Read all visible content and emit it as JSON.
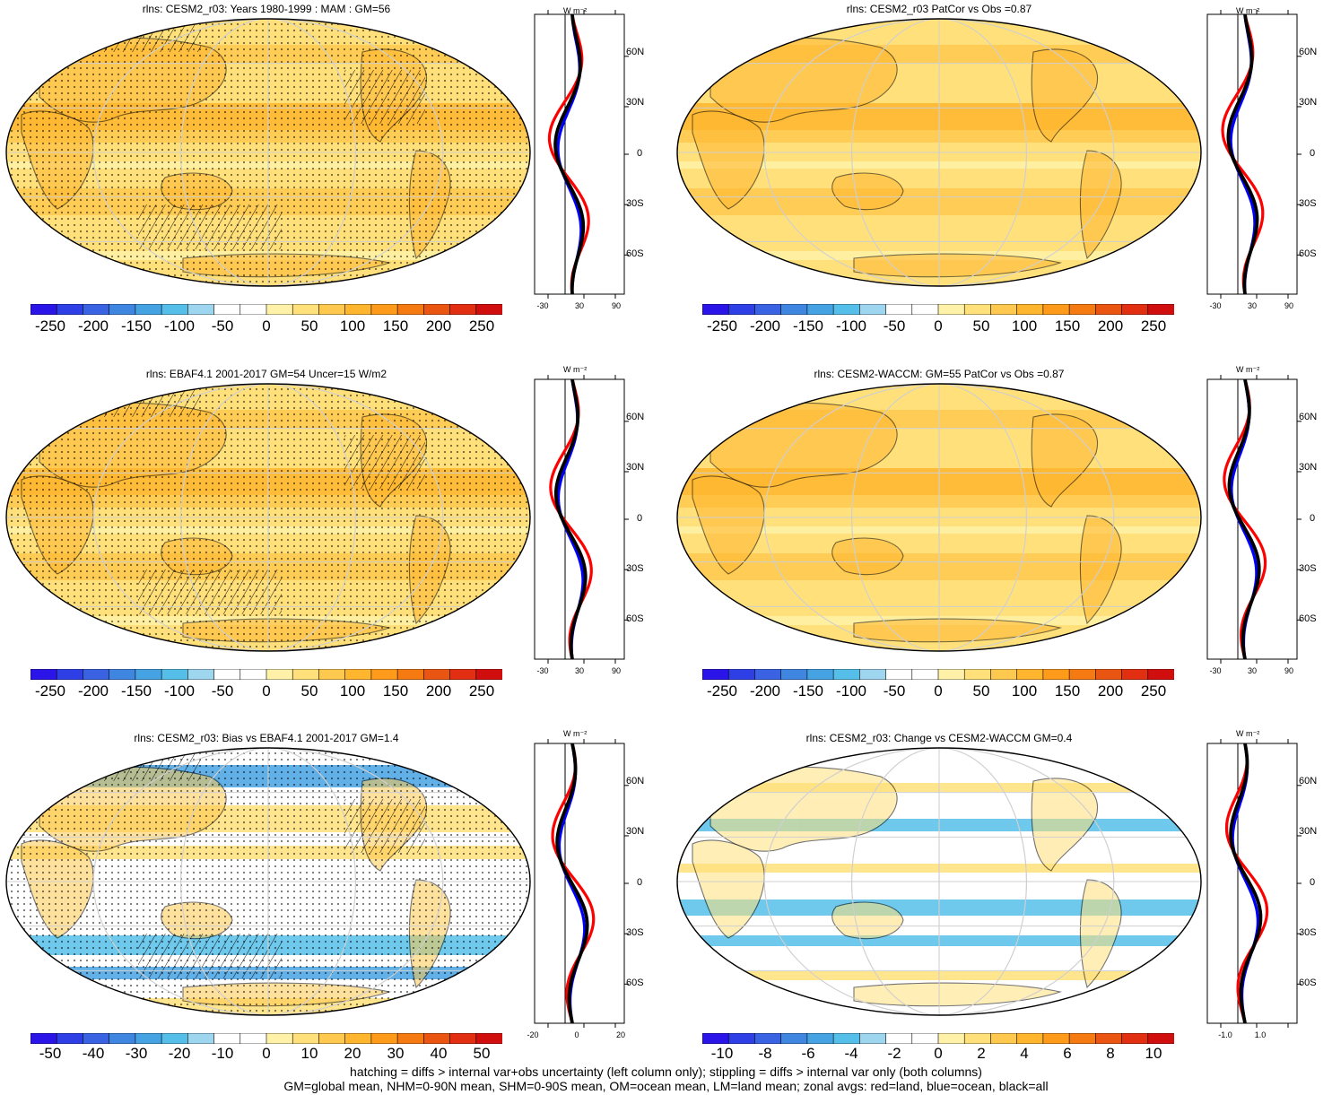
{
  "panels": [
    {
      "title": "rlns: CESM2_r03: Years 1980-1999 : MAM : GM=56",
      "kind": "abs",
      "hatched": true,
      "stippled": true,
      "colorbar_labels": [
        "-250",
        "-200",
        "-150",
        "-100",
        "-50",
        "0",
        "50",
        "100",
        "150",
        "200",
        "250"
      ],
      "profile_unit": "W m⁻²",
      "profile_lat_labels": [
        "60N",
        "30N",
        "0",
        "30S",
        "60S"
      ],
      "profile_xticks": [
        "-30",
        "30",
        "90"
      ]
    },
    {
      "title": "rlns: CESM2_r03 PatCor vs Obs =0.87",
      "kind": "abs",
      "hatched": false,
      "stippled": false,
      "colorbar_labels": [
        "-250",
        "-200",
        "-150",
        "-100",
        "-50",
        "0",
        "50",
        "100",
        "150",
        "200",
        "250"
      ],
      "profile_unit": "W m⁻²",
      "profile_lat_labels": [
        "60N",
        "30N",
        "0",
        "30S",
        "60S"
      ],
      "profile_xticks": [
        "-30",
        "30",
        "90"
      ]
    },
    {
      "title": "rlns: EBAF4.1 2001-2017 GM=54 Uncer=15 W/m2",
      "kind": "abs",
      "hatched": true,
      "stippled": true,
      "colorbar_labels": [
        "-250",
        "-200",
        "-150",
        "-100",
        "-50",
        "0",
        "50",
        "100",
        "150",
        "200",
        "250"
      ],
      "profile_unit": "W m⁻²",
      "profile_lat_labels": [
        "60N",
        "30N",
        "0",
        "30S",
        "60S"
      ],
      "profile_xticks": [
        "-30",
        "30",
        "90"
      ]
    },
    {
      "title": "rlns: CESM2-WACCM: GM=55 PatCor vs Obs =0.87",
      "kind": "abs",
      "hatched": false,
      "stippled": false,
      "colorbar_labels": [
        "-250",
        "-200",
        "-150",
        "-100",
        "-50",
        "0",
        "50",
        "100",
        "150",
        "200",
        "250"
      ],
      "profile_unit": "W m⁻²",
      "profile_lat_labels": [
        "60N",
        "30N",
        "0",
        "30S",
        "60S"
      ],
      "profile_xticks": [
        "-30",
        "30",
        "90"
      ]
    },
    {
      "title": "rlns: CESM2_r03: Bias vs EBAF4.1 2001-2017 GM=1.4",
      "kind": "bias",
      "hatched": true,
      "stippled": true,
      "colorbar_labels": [
        "-50",
        "-40",
        "-30",
        "-20",
        "-10",
        "0",
        "10",
        "20",
        "30",
        "40",
        "50"
      ],
      "profile_unit": "W m⁻²",
      "profile_lat_labels": [
        "60N",
        "30N",
        "0",
        "30S",
        "60S"
      ],
      "profile_xticks": [
        "-20",
        "0",
        "20"
      ]
    },
    {
      "title": "rlns: CESM2_r03: Change vs CESM2-WACCM GM=0.4",
      "kind": "change",
      "hatched": false,
      "stippled": false,
      "colorbar_labels": [
        "-10",
        "-8",
        "-6",
        "-4",
        "-2",
        "0",
        "2",
        "4",
        "6",
        "8",
        "10"
      ],
      "profile_unit": "W m⁻²",
      "profile_lat_labels": [
        "60N",
        "30N",
        "0",
        "30S",
        "60S"
      ],
      "profile_xticks": [
        "-1.0",
        "1.0"
      ]
    }
  ],
  "colors": {
    "scale": [
      "#2a14e8",
      "#2f3fe6",
      "#3a63e3",
      "#3f86e0",
      "#45a2e3",
      "#55bfe9",
      "#9fd6ef",
      "#ffffff",
      "#ffffff",
      "#fff2a8",
      "#ffe07a",
      "#ffc94f",
      "#ffb52e",
      "#ff9a1a",
      "#f57a12",
      "#ea5512",
      "#e22f12",
      "#d10e0e"
    ],
    "land": "#f4d16a",
    "zonal_land": "#ff0000",
    "zonal_ocean": "#0000ff",
    "zonal_all": "#000000"
  },
  "footer": {
    "line1": "hatching = diffs > internal var+obs uncertainty (left column only); stippling = diffs > internal var only (both columns)",
    "line2": "GM=global mean, NHM=0-90N mean, SHM=0-90S mean, OM=ocean mean, LM=land mean; zonal avgs: red=land, blue=ocean, black=all"
  }
}
